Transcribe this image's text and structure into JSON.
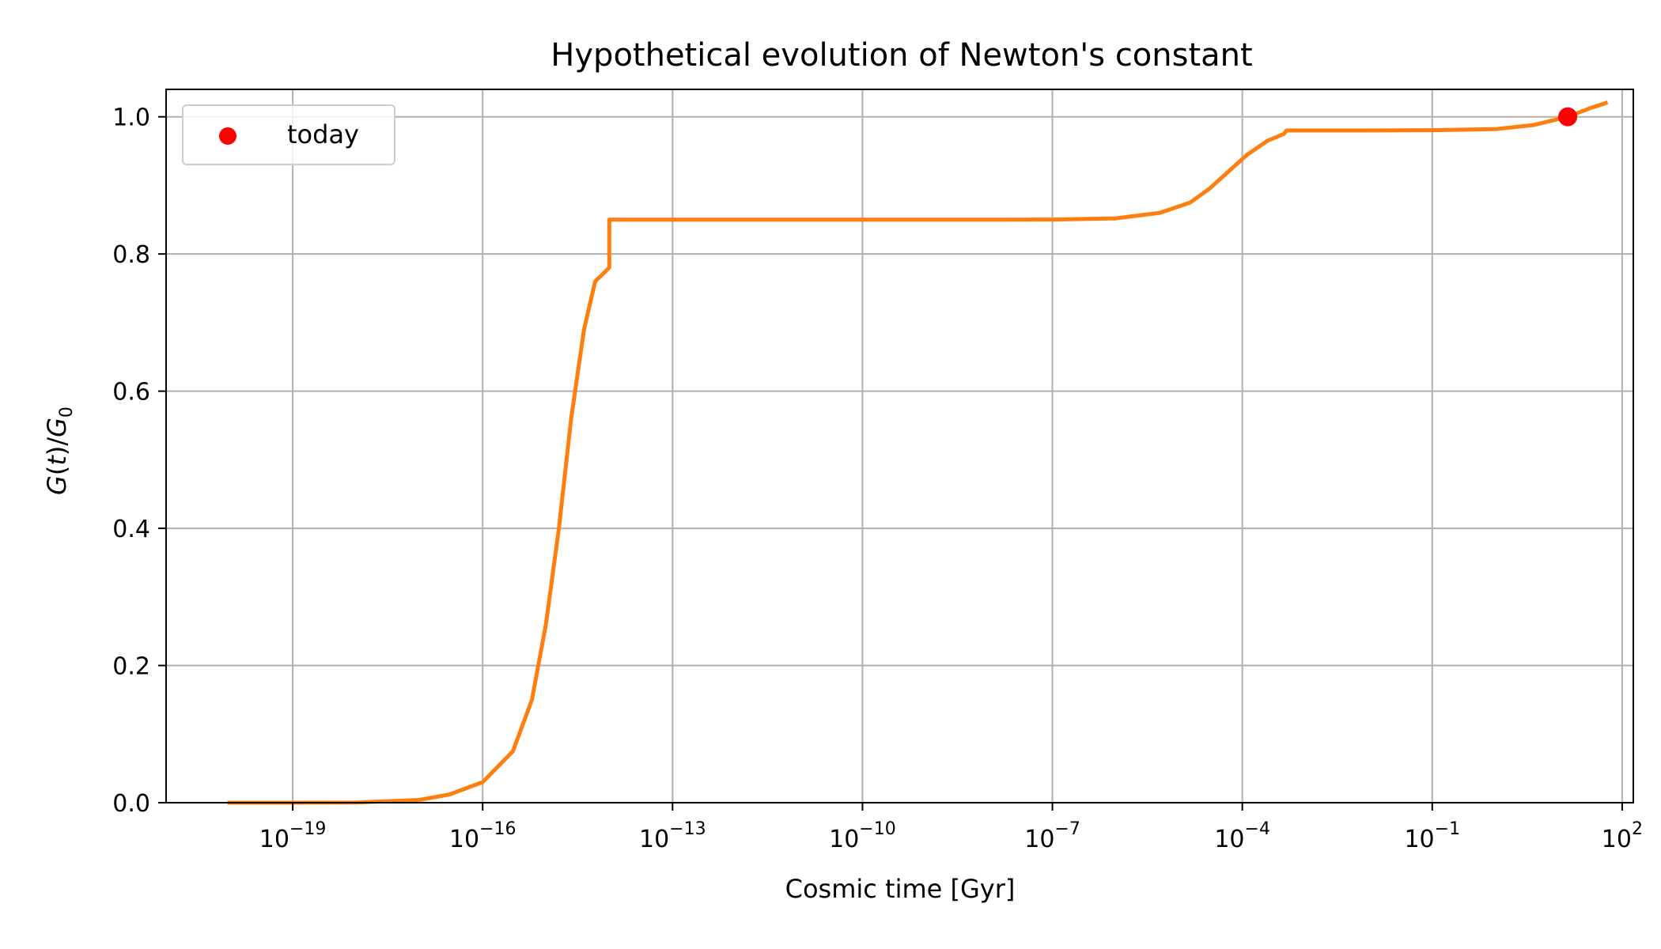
{
  "chart_data": {
    "type": "line",
    "title": "Hypothetical evolution of Newton's constant",
    "xlabel": "Cosmic time [Gyr]",
    "ylabel_parts": [
      "G",
      "(",
      "t",
      ")/",
      "G",
      "0"
    ],
    "x_scale": "log",
    "x_ticks": [
      {
        "base": "10",
        "exp": "−19",
        "value": 1e-19
      },
      {
        "base": "10",
        "exp": "−16",
        "value": 1e-16
      },
      {
        "base": "10",
        "exp": "−13",
        "value": 1e-13
      },
      {
        "base": "10",
        "exp": "−10",
        "value": 1e-10
      },
      {
        "base": "10",
        "exp": "−7",
        "value": 1e-07
      },
      {
        "base": "10",
        "exp": "−4",
        "value": 0.0001
      },
      {
        "base": "10",
        "exp": "−1",
        "value": 0.1
      },
      {
        "base": "10",
        "exp": "2",
        "value": 100
      }
    ],
    "y_ticks": [
      "0.0",
      "0.2",
      "0.4",
      "0.6",
      "0.8",
      "1.0"
    ],
    "xlim": [
      1e-21,
      150
    ],
    "ylim": [
      0.0,
      1.04
    ],
    "grid": true,
    "series": [
      {
        "color": "#ff7f0e",
        "points": [
          [
            1e-20,
            0.0
          ],
          [
            1e-19,
            0.0
          ],
          [
            1e-18,
            0.0003
          ],
          [
            1e-17,
            0.004
          ],
          [
            3e-17,
            0.012
          ],
          [
            1e-16,
            0.03
          ],
          [
            3e-16,
            0.075
          ],
          [
            6e-16,
            0.15
          ],
          [
            1e-15,
            0.26
          ],
          [
            1.6e-15,
            0.4
          ],
          [
            2.5e-15,
            0.56
          ],
          [
            4e-15,
            0.69
          ],
          [
            6e-15,
            0.76
          ],
          [
            1e-14,
            0.78
          ],
          [
            1e-14,
            0.85
          ],
          [
            1e-11,
            0.85
          ],
          [
            1e-08,
            0.85
          ],
          [
            1e-07,
            0.8502
          ],
          [
            1e-06,
            0.852
          ],
          [
            5e-06,
            0.86
          ],
          [
            1.5e-05,
            0.875
          ],
          [
            3e-05,
            0.895
          ],
          [
            6e-05,
            0.92
          ],
          [
            0.00012,
            0.945
          ],
          [
            0.00025,
            0.965
          ],
          [
            0.00045,
            0.975
          ],
          [
            0.0005,
            0.98
          ],
          [
            0.01,
            0.98
          ],
          [
            0.1,
            0.9805
          ],
          [
            1,
            0.982
          ],
          [
            4,
            0.988
          ],
          [
            13.8,
            1.0
          ],
          [
            30,
            1.012
          ],
          [
            55,
            1.02
          ]
        ]
      }
    ],
    "points": [
      {
        "label": "today",
        "x": 13.8,
        "y": 1.0,
        "color": "#ff0000"
      }
    ],
    "legend": {
      "placement": "upper-left",
      "entries": [
        {
          "label": "today",
          "color": "#ff0000",
          "marker": "circle"
        }
      ]
    }
  }
}
